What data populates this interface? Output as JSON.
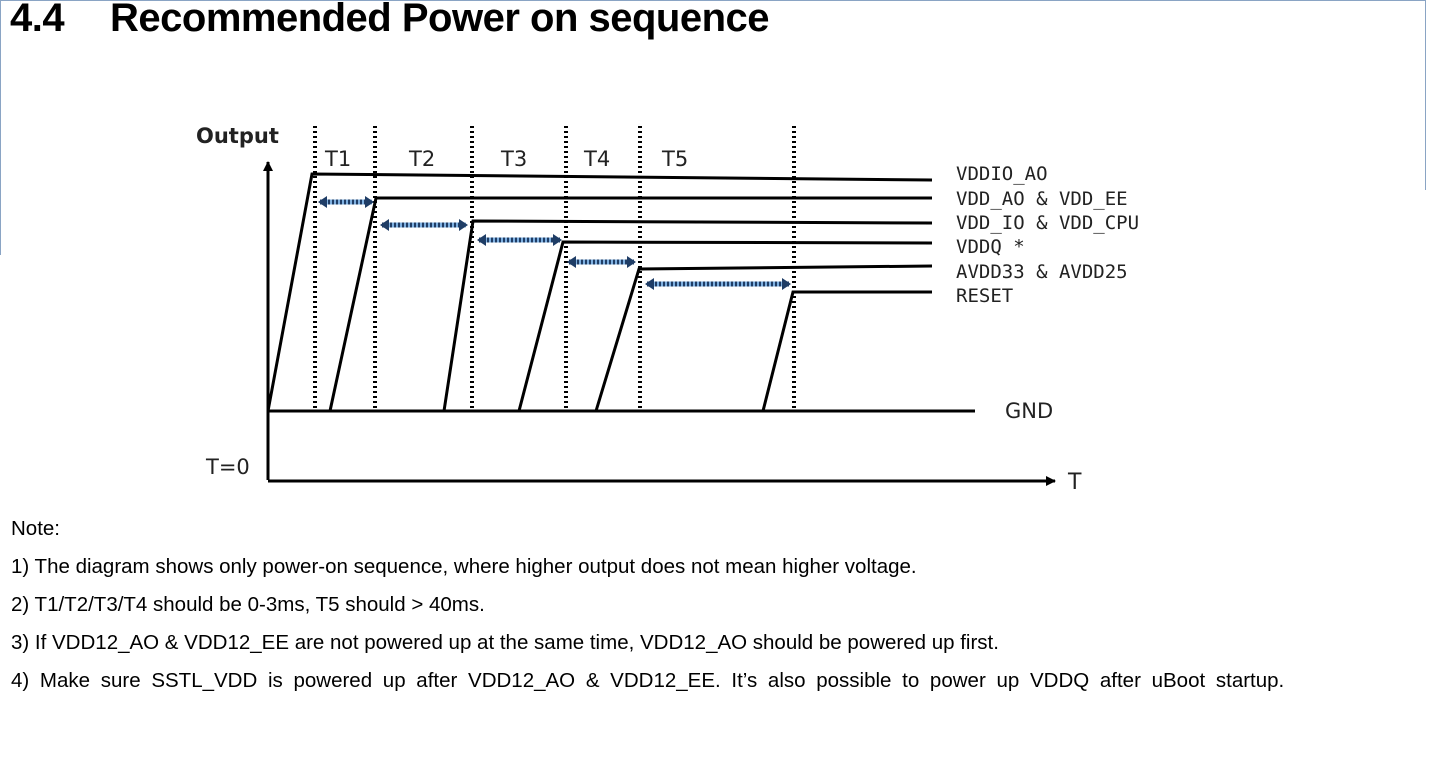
{
  "section": {
    "number": "4.4",
    "title": "Recommended Power on sequence"
  },
  "diagram": {
    "y_axis_label": "Output",
    "x_axis_label": "T",
    "origin_label": "T=0",
    "interval_labels": [
      "T1",
      "T2",
      "T3",
      "T4",
      "T5"
    ],
    "rail_labels": [
      "VDDIO_AO",
      "VDD_AO & VDD_EE",
      "VDD_IO & VDD_CPU",
      "VDDQ *",
      "AVDD33 & AVDD25",
      "RESET"
    ],
    "ground_label": "GND",
    "colors": {
      "line": "#000000",
      "delay_arrow": "#7fb0e0"
    }
  },
  "notes": {
    "title": "Note:",
    "items": [
      "1) The diagram shows only power-on sequence, where higher output does not mean higher voltage.",
      "2)  T1/T2/T3/T4 should be 0-3ms, T5 should > 40ms.",
      "3)  If VDD12_AO & VDD12_EE are not powered up at the same time, VDD12_AO should be powered up first.",
      "4) Make sure SSTL_VDD is powered up after VDD12_AO & VDD12_EE.  It’s also possible to power up VDDQ after uBoot startup."
    ]
  }
}
